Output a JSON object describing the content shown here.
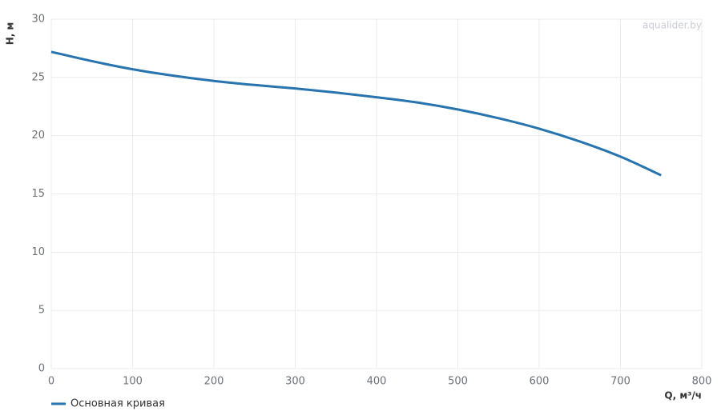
{
  "chart_data": {
    "type": "line",
    "watermark": "aqualider.by",
    "x_label": "Q, м³/ч",
    "y_label": "H, м",
    "x": [
      0,
      50,
      100,
      150,
      200,
      250,
      300,
      350,
      400,
      450,
      500,
      550,
      600,
      650,
      700,
      750
    ],
    "series": [
      {
        "name": "Основная кривая",
        "color": "#2774ae",
        "values": [
          27.2,
          26.4,
          25.7,
          25.15,
          24.7,
          24.35,
          24.05,
          23.7,
          23.3,
          22.85,
          22.25,
          21.5,
          20.6,
          19.5,
          18.2,
          16.6
        ]
      }
    ],
    "xlim": [
      0,
      800
    ],
    "xticks": [
      0,
      100,
      200,
      300,
      400,
      500,
      600,
      700,
      800
    ],
    "ylim": [
      0,
      30
    ],
    "yticks": [
      0,
      5,
      10,
      15,
      20,
      25,
      30
    ],
    "grid": true,
    "legend": "bottom-left"
  }
}
